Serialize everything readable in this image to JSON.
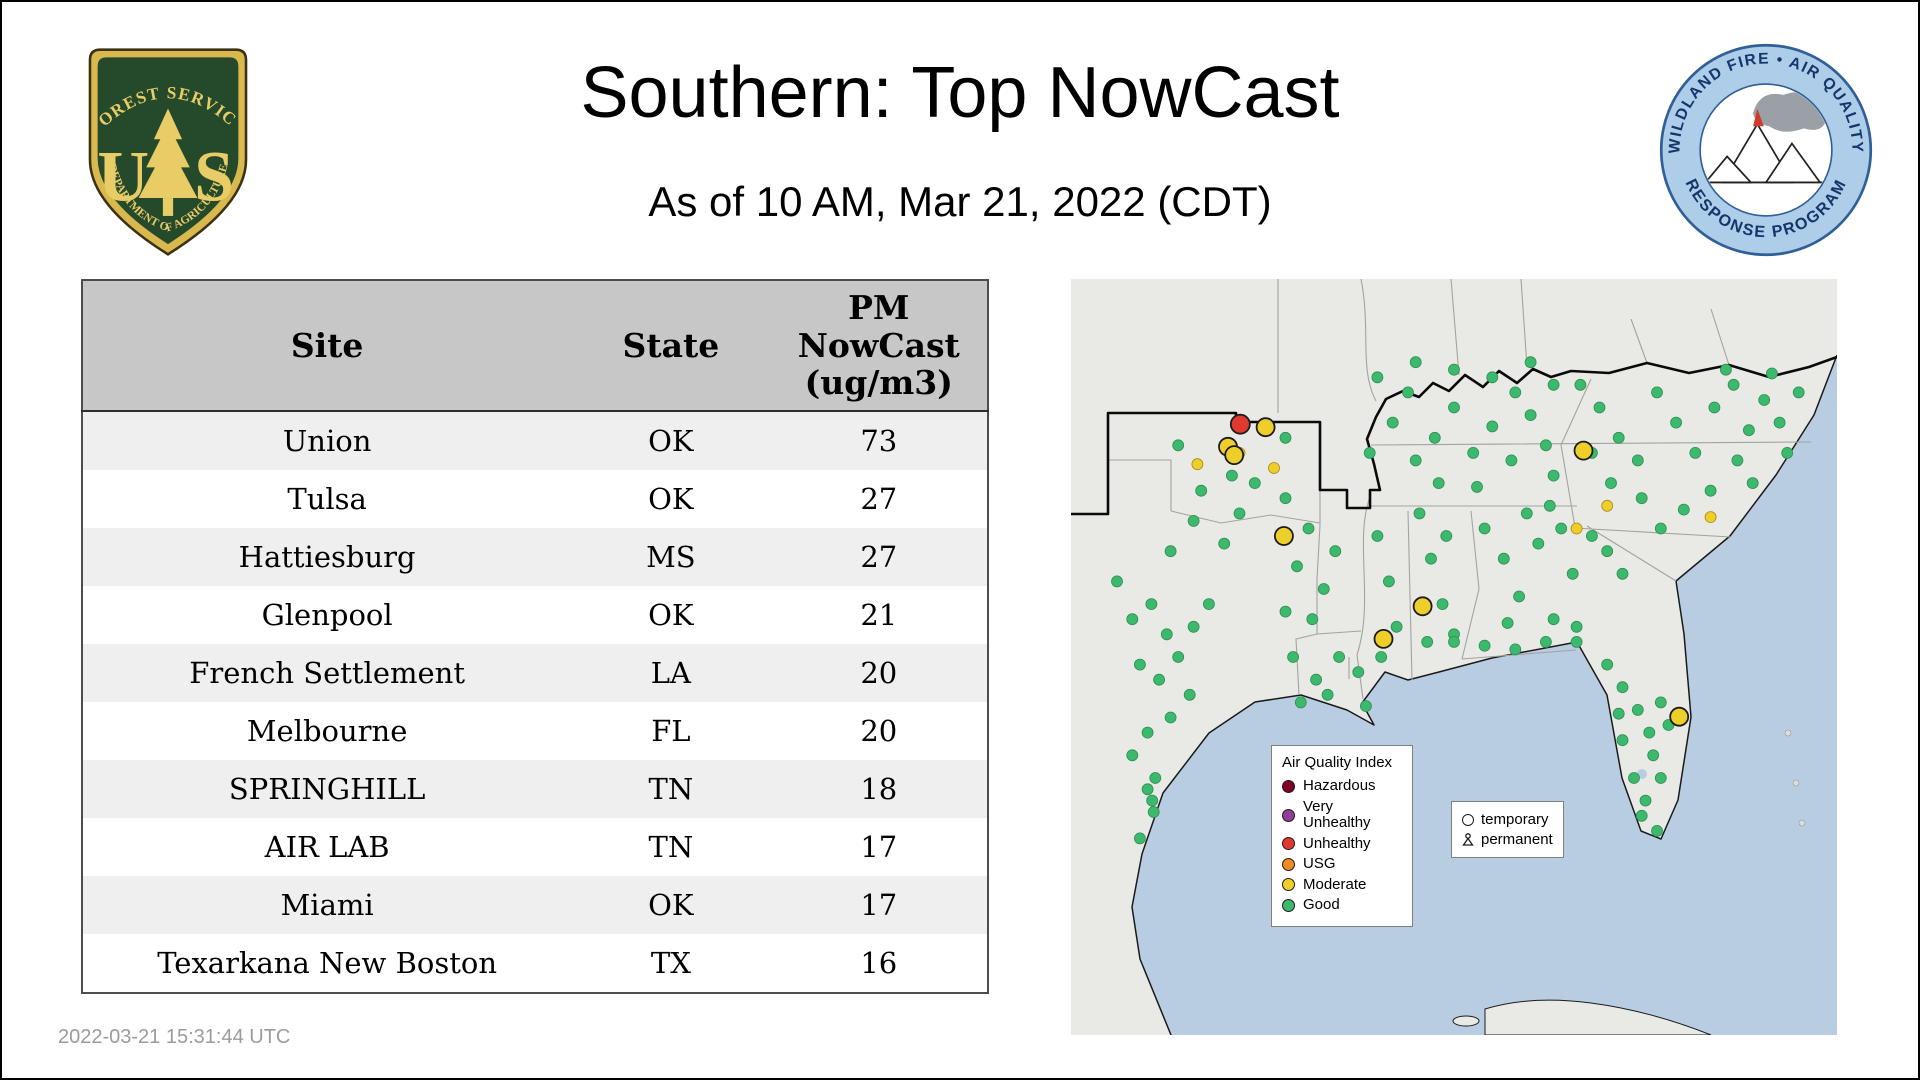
{
  "header": {
    "title": "Southern: Top NowCast",
    "subtitle": "As of 10 AM, Mar 21, 2022 (CDT)"
  },
  "logos": {
    "forest_service": {
      "arc_top": "FOREST SERVICE",
      "letter_left": "U",
      "letter_right": "S",
      "arc_bottom": "DEPARTMENT OF AGRICULTURE"
    },
    "airfire": {
      "arc_top": "WILDLAND FIRE • AIR QUALITY",
      "arc_bottom": "RESPONSE PROGRAM"
    }
  },
  "table": {
    "columns": [
      "Site",
      "State",
      "PM NowCast (ug/m3)"
    ],
    "rows": [
      [
        "Union",
        "OK",
        "73"
      ],
      [
        "Tulsa",
        "OK",
        "27"
      ],
      [
        "Hattiesburg",
        "MS",
        "27"
      ],
      [
        "Glenpool",
        "OK",
        "21"
      ],
      [
        "French Settlement",
        "LA",
        "20"
      ],
      [
        "Melbourne",
        "FL",
        "20"
      ],
      [
        "SPRINGHILL",
        "TN",
        "18"
      ],
      [
        "AIR LAB",
        "TN",
        "17"
      ],
      [
        "Miami",
        "OK",
        "17"
      ],
      [
        "Texarkana New Boston",
        "TX",
        "16"
      ]
    ]
  },
  "footer": {
    "timestamp": "2022-03-21 15:31:44 UTC"
  },
  "map": {
    "legend": {
      "title": "Air Quality Index",
      "items": [
        {
          "label": "Hazardous",
          "color": "#7e0023"
        },
        {
          "label": "Very Unhealthy",
          "color": "#8f3f97"
        },
        {
          "label": "Unhealthy",
          "color": "#e03a30"
        },
        {
          "label": "USG",
          "color": "#f08a24"
        },
        {
          "label": "Moderate",
          "color": "#eecf2a"
        },
        {
          "label": "Good",
          "color": "#3cb96c"
        }
      ]
    },
    "marker_legend": {
      "items": [
        {
          "label": "temporary",
          "icon": "circle"
        },
        {
          "label": "permanent",
          "icon": "person"
        }
      ]
    },
    "colors": {
      "water": "#b9cde2",
      "land": "#e9e9e6",
      "good": "#3cb96c",
      "moderate": "#eecf2a",
      "unhealthy": "#e03a30"
    },
    "dots": {
      "good": [
        [
          6,
          40
        ],
        [
          8,
          45
        ],
        [
          10.5,
          43
        ],
        [
          12.5,
          47
        ],
        [
          9,
          51
        ],
        [
          11.5,
          53
        ],
        [
          14,
          50
        ],
        [
          16,
          46
        ],
        [
          18,
          43
        ],
        [
          15.5,
          55
        ],
        [
          13,
          58
        ],
        [
          10,
          60
        ],
        [
          8,
          63
        ],
        [
          11,
          66
        ],
        [
          10.6,
          69
        ],
        [
          10.8,
          70.5
        ],
        [
          10,
          67.5
        ],
        [
          9,
          74
        ],
        [
          13,
          36
        ],
        [
          16,
          32
        ],
        [
          20,
          35
        ],
        [
          22,
          31
        ],
        [
          17,
          28
        ],
        [
          14,
          22
        ],
        [
          24,
          27
        ],
        [
          28,
          21
        ],
        [
          21,
          26
        ],
        [
          28,
          29
        ],
        [
          31,
          33
        ],
        [
          29.5,
          38
        ],
        [
          33,
          41
        ],
        [
          28,
          44
        ],
        [
          31.5,
          45
        ],
        [
          34.5,
          36
        ],
        [
          29,
          50
        ],
        [
          32,
          53
        ],
        [
          35,
          50
        ],
        [
          37.5,
          52
        ],
        [
          30,
          56
        ],
        [
          33.5,
          55
        ],
        [
          38.5,
          56.5
        ],
        [
          40,
          34
        ],
        [
          41.5,
          40
        ],
        [
          42.5,
          46
        ],
        [
          40.5,
          50
        ],
        [
          45.5,
          31
        ],
        [
          47,
          37
        ],
        [
          48.5,
          43
        ],
        [
          46.5,
          48
        ],
        [
          50,
          47
        ],
        [
          49,
          34
        ],
        [
          39,
          23
        ],
        [
          42,
          19
        ],
        [
          45,
          24
        ],
        [
          47.5,
          21
        ],
        [
          50,
          17
        ],
        [
          52.5,
          23
        ],
        [
          55,
          19.5
        ],
        [
          57.5,
          24
        ],
        [
          60,
          18
        ],
        [
          62,
          22
        ],
        [
          44,
          15
        ],
        [
          48,
          27
        ],
        [
          53,
          27.5
        ],
        [
          63,
          26
        ],
        [
          58,
          15
        ],
        [
          40,
          13
        ],
        [
          45,
          11
        ],
        [
          50,
          12
        ],
        [
          55,
          13
        ],
        [
          60,
          11
        ],
        [
          63,
          14
        ],
        [
          54,
          33
        ],
        [
          56.5,
          37
        ],
        [
          58.5,
          42
        ],
        [
          61,
          35
        ],
        [
          63,
          45
        ],
        [
          65.5,
          39
        ],
        [
          57,
          45.5
        ],
        [
          59.5,
          31
        ],
        [
          66,
          48
        ],
        [
          62.5,
          30
        ],
        [
          64,
          33
        ],
        [
          68,
          34
        ],
        [
          70,
          36
        ],
        [
          72,
          39
        ],
        [
          50,
          48
        ],
        [
          54,
          48.5
        ],
        [
          58,
          49
        ],
        [
          62,
          48
        ],
        [
          66,
          46
        ],
        [
          70,
          51
        ],
        [
          72,
          54
        ],
        [
          74,
          57
        ],
        [
          75.5,
          60
        ],
        [
          76,
          63
        ],
        [
          77,
          66
        ],
        [
          75,
          69
        ],
        [
          73.5,
          66
        ],
        [
          72,
          61
        ],
        [
          74.5,
          71
        ],
        [
          76.5,
          73
        ],
        [
          78,
          59
        ],
        [
          77,
          56
        ],
        [
          71.5,
          57.5
        ],
        [
          66.5,
          14
        ],
        [
          69,
          17
        ],
        [
          71.5,
          21
        ],
        [
          74,
          24
        ],
        [
          76.5,
          15
        ],
        [
          79,
          19
        ],
        [
          81.5,
          23
        ],
        [
          84,
          17
        ],
        [
          86.5,
          14
        ],
        [
          88.5,
          20
        ],
        [
          83.5,
          28
        ],
        [
          80,
          30.5
        ],
        [
          77,
          33
        ],
        [
          74.5,
          29
        ],
        [
          87,
          24
        ],
        [
          90.5,
          16
        ],
        [
          92.5,
          19
        ],
        [
          68,
          23
        ],
        [
          70.5,
          27
        ],
        [
          89,
          27
        ],
        [
          91.5,
          12.5
        ],
        [
          85.5,
          12
        ],
        [
          93.5,
          23
        ],
        [
          95,
          15
        ]
      ],
      "moderate_small": [
        [
          16.5,
          24.5
        ],
        [
          26.5,
          25
        ],
        [
          66,
          33
        ],
        [
          83.5,
          31.5
        ],
        [
          70,
          30
        ],
        [
          22,
          23
        ]
      ],
      "moderate_sites": [
        [
          20.5,
          22.2
        ],
        [
          21.3,
          23.3
        ],
        [
          25.4,
          19.6
        ],
        [
          27.8,
          34
        ],
        [
          45.9,
          43.3
        ],
        [
          40.8,
          47.6
        ],
        [
          66.9,
          22.7
        ],
        [
          79.4,
          57.9
        ]
      ],
      "unhealthy_sites": [
        [
          22.1,
          19.2
        ]
      ]
    }
  },
  "chart_data": {
    "type": "table",
    "title": "Southern: Top NowCast",
    "subtitle": "As of 10 AM, Mar 21, 2022 (CDT)",
    "columns": [
      "Site",
      "State",
      "PM NowCast (ug/m3)"
    ],
    "rows": [
      [
        "Union",
        "OK",
        73
      ],
      [
        "Tulsa",
        "OK",
        27
      ],
      [
        "Hattiesburg",
        "MS",
        27
      ],
      [
        "Glenpool",
        "OK",
        21
      ],
      [
        "French Settlement",
        "LA",
        20
      ],
      [
        "Melbourne",
        "FL",
        20
      ],
      [
        "SPRINGHILL",
        "TN",
        18
      ],
      [
        "AIR LAB",
        "TN",
        17
      ],
      [
        "Miami",
        "OK",
        17
      ],
      [
        "Texarkana New Boston",
        "TX",
        16
      ]
    ],
    "notes": "Map shows monitor sites colored by AQI category: 1 Unhealthy (red, NE Oklahoma), several Moderate (yellow), many Good (green) across the USFS Southern Region."
  }
}
